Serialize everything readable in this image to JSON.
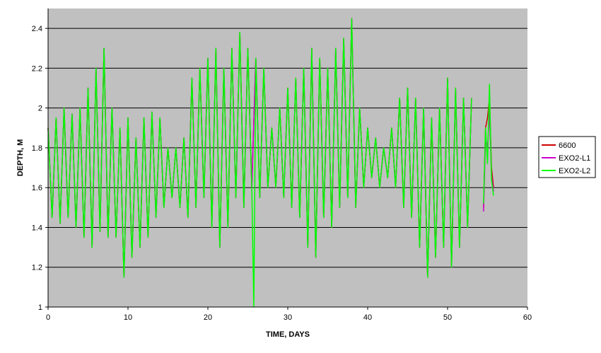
{
  "chart_data": {
    "type": "line",
    "title": "",
    "xlabel": "TIME, DAYS",
    "ylabel": "DEPTH, M",
    "xlim": [
      0,
      60
    ],
    "ylim": [
      1,
      2.5
    ],
    "x_ticks": [
      "0",
      "10",
      "20",
      "30",
      "40",
      "50",
      "60"
    ],
    "y_ticks": [
      "1",
      "1.2",
      "1.4",
      "1.6",
      "1.8",
      "2",
      "2.2",
      "2.4"
    ],
    "grid": "horizontal",
    "plot_background": "#c0c0c0",
    "legend_position": "right",
    "series": [
      {
        "name": "6600",
        "color": "#cc0000",
        "x": [
          0.0,
          0.5,
          1.0,
          1.5,
          2.0,
          2.5,
          3.0,
          3.5,
          4.0,
          4.5,
          5.0,
          5.5,
          6.0,
          6.5,
          7.0,
          7.5,
          8.0,
          8.5,
          9.0,
          9.5,
          10.0,
          10.5,
          11.0,
          11.5,
          12.0,
          12.5,
          13.0,
          13.5,
          14.0,
          14.5,
          15.0,
          15.5,
          16.0,
          16.5,
          17.0,
          17.5,
          18.0,
          18.5,
          19.0,
          19.5,
          20.0,
          20.5,
          21.0,
          21.5,
          22.0,
          22.5,
          23.0,
          23.5,
          24.0,
          24.5,
          25.0,
          25.5,
          26.0,
          26.5,
          27.0,
          27.5,
          28.0,
          28.5,
          29.0,
          29.5,
          30.0,
          30.5,
          31.0,
          31.5,
          32.0,
          32.5,
          33.0,
          33.5,
          34.0,
          34.5,
          35.0,
          35.5,
          36.0,
          36.5,
          37.0,
          37.5,
          38.0,
          38.5,
          39.0,
          39.5,
          40.0,
          40.5,
          41.0,
          41.5,
          42.0,
          42.5,
          43.0,
          43.5,
          44.0,
          44.5,
          45.0,
          45.5,
          46.0,
          46.5,
          47.0,
          47.5,
          48.0,
          48.5,
          49.0,
          49.5,
          50.0,
          50.5,
          51.0,
          51.5,
          52.0,
          52.5,
          53.0
        ],
        "y": [
          1.9,
          1.45,
          1.95,
          1.42,
          2.0,
          1.45,
          1.97,
          1.4,
          2.0,
          1.35,
          2.1,
          1.3,
          2.2,
          1.38,
          2.3,
          1.35,
          2.0,
          1.35,
          1.9,
          1.15,
          1.95,
          1.25,
          1.85,
          1.3,
          1.95,
          1.35,
          1.98,
          1.45,
          1.95,
          1.5,
          1.8,
          1.55,
          1.8,
          1.5,
          1.85,
          1.45,
          2.15,
          1.5,
          2.2,
          1.55,
          2.25,
          1.4,
          2.3,
          1.3,
          2.2,
          1.4,
          2.3,
          1.55,
          2.38,
          1.5,
          2.3,
          1.6,
          2.25,
          1.55,
          2.2,
          1.6,
          1.9,
          1.6,
          2.0,
          1.55,
          2.1,
          1.5,
          2.15,
          1.45,
          2.2,
          1.3,
          2.3,
          1.25,
          2.25,
          1.45,
          2.2,
          1.4,
          2.3,
          1.5,
          2.35,
          1.55,
          2.45,
          1.5,
          2.0,
          1.6,
          1.9,
          1.65,
          1.85,
          1.6,
          1.8,
          1.65,
          1.9,
          1.6,
          2.05,
          1.5,
          2.1,
          1.45,
          2.05,
          1.3,
          2.0,
          1.15,
          1.95,
          1.25,
          2.0,
          1.3,
          2.15,
          1.2,
          2.1,
          1.3,
          2.05,
          1.4,
          2.05
        ],
        "x2": [
          54.5,
          54.75,
          55.0,
          55.25,
          55.5,
          55.75
        ],
        "y2": [
          1.5,
          1.9,
          1.95,
          2.05,
          1.7,
          1.6
        ]
      },
      {
        "name": "EXO2-L1",
        "color": "#cc00cc",
        "x": [
          0.0,
          0.5,
          1.0,
          1.5,
          2.0,
          2.5,
          3.0,
          3.5,
          4.0,
          4.5,
          5.0,
          5.5,
          6.0,
          6.5,
          7.0,
          7.5,
          8.0,
          8.5,
          9.0,
          9.5,
          10.0,
          10.5,
          11.0,
          11.5,
          12.0,
          12.5,
          13.0,
          13.5,
          14.0,
          14.5,
          15.0,
          15.5,
          16.0,
          16.5,
          17.0,
          17.5,
          18.0,
          18.5,
          19.0,
          19.5,
          20.0,
          20.5,
          21.0,
          21.5,
          22.0,
          22.5,
          23.0,
          23.5,
          24.0,
          24.5,
          25.0,
          25.5,
          26.0,
          26.5,
          27.0,
          27.5,
          28.0,
          28.5,
          29.0,
          29.5,
          30.0,
          30.5,
          31.0,
          31.5,
          32.0,
          32.5,
          33.0,
          33.5,
          34.0,
          34.5,
          35.0,
          35.5,
          36.0,
          36.5,
          37.0,
          37.5,
          38.0,
          38.5,
          39.0,
          39.5,
          40.0,
          40.5,
          41.0,
          41.5,
          42.0,
          42.5,
          43.0,
          43.5,
          44.0,
          44.5,
          45.0,
          45.5,
          46.0,
          46.5,
          47.0,
          47.5,
          48.0,
          48.5,
          49.0,
          49.5,
          50.0,
          50.5,
          51.0,
          51.5,
          52.0,
          52.5,
          53.0
        ],
        "y": [
          1.9,
          1.45,
          1.95,
          1.42,
          2.0,
          1.45,
          1.97,
          1.4,
          2.0,
          1.35,
          2.1,
          1.3,
          2.2,
          1.38,
          2.3,
          1.35,
          2.0,
          1.35,
          1.9,
          1.15,
          1.95,
          1.25,
          1.85,
          1.3,
          1.95,
          1.35,
          1.98,
          1.45,
          1.95,
          1.5,
          1.8,
          1.55,
          1.8,
          1.5,
          1.85,
          1.45,
          2.15,
          1.5,
          2.2,
          1.55,
          2.25,
          1.4,
          2.3,
          1.3,
          2.2,
          1.4,
          2.3,
          1.55,
          2.38,
          1.5,
          2.3,
          1.6,
          2.25,
          1.55,
          2.2,
          1.6,
          1.9,
          1.6,
          2.0,
          1.55,
          2.1,
          1.5,
          2.15,
          1.45,
          2.2,
          1.3,
          2.3,
          1.25,
          2.25,
          1.45,
          2.2,
          1.4,
          2.3,
          1.5,
          2.35,
          1.55,
          2.45,
          1.5,
          2.0,
          1.6,
          1.9,
          1.65,
          1.85,
          1.6,
          1.8,
          1.65,
          1.9,
          1.6,
          2.05,
          1.5,
          2.1,
          1.45,
          2.05,
          1.3,
          2.0,
          1.15,
          1.95,
          1.25,
          2.0,
          1.3,
          2.15,
          1.2,
          2.1,
          1.3,
          2.05,
          1.4,
          2.05
        ],
        "x2": [
          54.5,
          54.75,
          55.0,
          55.25,
          55.5,
          55.75
        ],
        "y2": [
          1.48,
          1.85,
          1.8,
          1.98,
          1.66,
          1.58
        ]
      },
      {
        "name": "EXO2-L2",
        "color": "#00ff00",
        "x": [
          0.0,
          0.5,
          1.0,
          1.5,
          2.0,
          2.5,
          3.0,
          3.5,
          4.0,
          4.5,
          5.0,
          5.5,
          6.0,
          6.5,
          7.0,
          7.5,
          8.0,
          8.5,
          9.0,
          9.5,
          10.0,
          10.5,
          11.0,
          11.5,
          12.0,
          12.5,
          13.0,
          13.5,
          14.0,
          14.5,
          15.0,
          15.5,
          16.0,
          16.5,
          17.0,
          17.5,
          18.0,
          18.5,
          19.0,
          19.5,
          20.0,
          20.5,
          21.0,
          21.5,
          22.0,
          22.5,
          23.0,
          23.5,
          24.0,
          24.5,
          25.0,
          25.5,
          25.75,
          26.0,
          26.5,
          27.0,
          27.5,
          28.0,
          28.5,
          29.0,
          29.5,
          30.0,
          30.5,
          31.0,
          31.5,
          32.0,
          32.5,
          33.0,
          33.5,
          34.0,
          34.5,
          35.0,
          35.5,
          36.0,
          36.5,
          37.0,
          37.5,
          38.0,
          38.5,
          39.0,
          39.5,
          40.0,
          40.5,
          41.0,
          41.5,
          42.0,
          42.5,
          43.0,
          43.5,
          44.0,
          44.5,
          45.0,
          45.5,
          46.0,
          46.5,
          47.0,
          47.5,
          48.0,
          48.5,
          49.0,
          49.5,
          50.0,
          50.5,
          51.0,
          51.5,
          52.0,
          52.5,
          53.0
        ],
        "y": [
          1.9,
          1.45,
          1.95,
          1.42,
          2.0,
          1.45,
          1.97,
          1.4,
          2.0,
          1.35,
          2.1,
          1.3,
          2.2,
          1.38,
          2.3,
          1.35,
          2.0,
          1.35,
          1.9,
          1.15,
          1.95,
          1.25,
          1.85,
          1.3,
          1.95,
          1.35,
          1.98,
          1.45,
          1.95,
          1.5,
          1.8,
          1.55,
          1.8,
          1.5,
          1.85,
          1.45,
          2.15,
          1.5,
          2.2,
          1.55,
          2.25,
          1.4,
          2.3,
          1.3,
          2.2,
          1.4,
          2.3,
          1.55,
          2.38,
          1.5,
          2.3,
          1.6,
          1.0,
          2.25,
          1.55,
          2.2,
          1.6,
          1.9,
          1.6,
          2.0,
          1.55,
          2.1,
          1.5,
          2.15,
          1.45,
          2.2,
          1.3,
          2.3,
          1.25,
          2.25,
          1.45,
          2.2,
          1.4,
          2.3,
          1.5,
          2.35,
          1.55,
          2.45,
          1.5,
          2.0,
          1.6,
          1.9,
          1.65,
          1.85,
          1.6,
          1.8,
          1.65,
          1.9,
          1.6,
          2.05,
          1.5,
          2.1,
          1.45,
          2.05,
          1.3,
          2.0,
          1.15,
          1.95,
          1.25,
          2.0,
          1.3,
          2.15,
          1.2,
          2.1,
          1.3,
          2.05,
          1.4,
          2.05
        ],
        "x2": [
          54.5,
          54.75,
          55.0,
          55.25,
          55.5,
          55.75
        ],
        "y2": [
          1.52,
          1.9,
          1.72,
          2.12,
          1.64,
          1.56
        ]
      }
    ]
  }
}
